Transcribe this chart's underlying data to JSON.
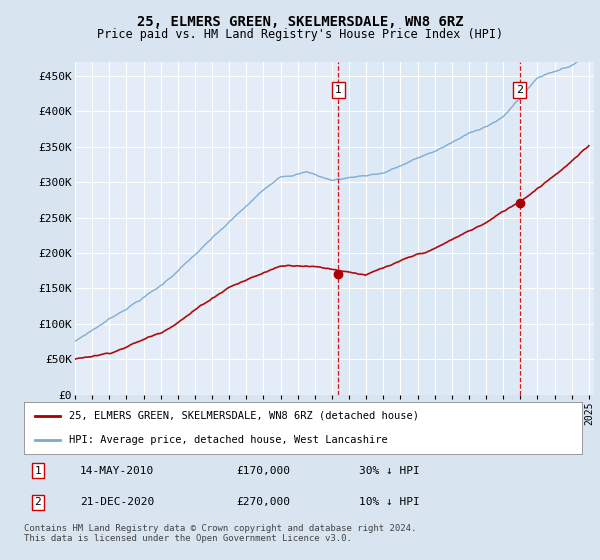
{
  "title": "25, ELMERS GREEN, SKELMERSDALE, WN8 6RZ",
  "subtitle": "Price paid vs. HM Land Registry's House Price Index (HPI)",
  "legend_label_red": "25, ELMERS GREEN, SKELMERSDALE, WN8 6RZ (detached house)",
  "legend_label_blue": "HPI: Average price, detached house, West Lancashire",
  "ann1_date": "14-MAY-2010",
  "ann1_price": "£170,000",
  "ann1_pct": "30% ↓ HPI",
  "ann1_x": 2010.37,
  "ann1_y": 170000,
  "ann2_date": "21-DEC-2020",
  "ann2_price": "£270,000",
  "ann2_pct": "10% ↓ HPI",
  "ann2_x": 2020.97,
  "ann2_y": 270000,
  "footer": "Contains HM Land Registry data © Crown copyright and database right 2024.\nThis data is licensed under the Open Government Licence v3.0.",
  "ylim": [
    0,
    470000
  ],
  "yticks": [
    0,
    50000,
    100000,
    150000,
    200000,
    250000,
    300000,
    350000,
    400000,
    450000
  ],
  "ytick_labels": [
    "£0",
    "£50K",
    "£100K",
    "£150K",
    "£200K",
    "£250K",
    "£300K",
    "£350K",
    "£400K",
    "£450K"
  ],
  "xmin": 1995,
  "xmax": 2025,
  "background_color": "#d8e4f0",
  "plot_bg_color": "#e4edf7",
  "shaded_bg_color": "#dce8f5",
  "grid_color": "#ffffff",
  "red_color": "#aa0000",
  "blue_color": "#7aaad0"
}
